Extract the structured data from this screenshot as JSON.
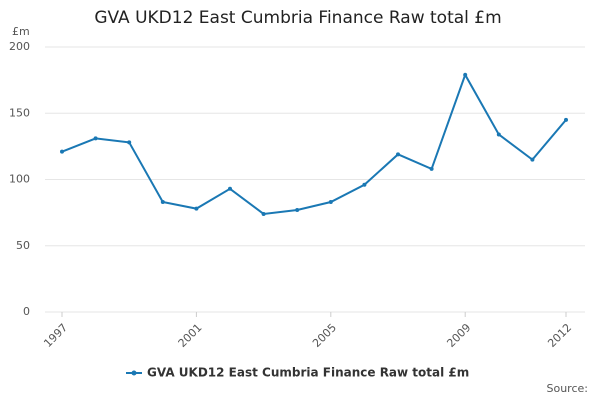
{
  "chart_data": {
    "type": "line",
    "title": "GVA UKD12 East Cumbria Finance Raw total £m",
    "y_label": "£m",
    "source": "Source:",
    "x": [
      1997,
      1998,
      1999,
      2000,
      2001,
      2002,
      2003,
      2004,
      2005,
      2006,
      2007,
      2008,
      2009,
      2010,
      2011,
      2012
    ],
    "series": [
      {
        "name": "GVA UKD12 East Cumbria Finance Raw total £m",
        "color": "#1a78b4",
        "values": [
          121,
          131,
          128,
          83,
          78,
          93,
          74,
          77,
          83,
          96,
          119,
          108,
          179,
          134,
          115,
          145
        ]
      }
    ],
    "xlim": [
      1997,
      2012
    ],
    "xticks": [
      1997,
      2001,
      2005,
      2009,
      2012
    ],
    "ylim": [
      0,
      200
    ],
    "yticks": [
      0,
      50,
      100,
      150,
      200
    ],
    "grid": true,
    "legend": "bottom"
  }
}
